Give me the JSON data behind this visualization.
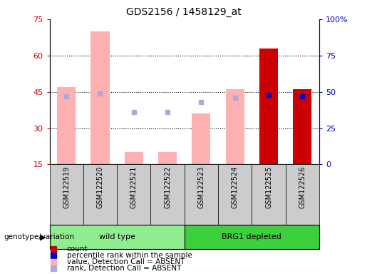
{
  "title": "GDS2156 / 1458129_at",
  "samples": [
    "GSM122519",
    "GSM122520",
    "GSM122521",
    "GSM122522",
    "GSM122523",
    "GSM122524",
    "GSM122525",
    "GSM122526"
  ],
  "groups": {
    "wild type": [
      0,
      1,
      2,
      3
    ],
    "BRG1 depleted": [
      4,
      5,
      6,
      7
    ]
  },
  "group_colors": {
    "wild type": "#90ee90",
    "BRG1 depleted": "#3ecf3e"
  },
  "ylim_left": [
    15,
    75
  ],
  "ylim_right": [
    0,
    100
  ],
  "yticks_left": [
    15,
    30,
    45,
    60,
    75
  ],
  "yticks_right": [
    0,
    25,
    50,
    75,
    100
  ],
  "ytick_labels_right": [
    "0",
    "25",
    "50",
    "75",
    "100%"
  ],
  "pink_bar_values": [
    47,
    70,
    20,
    20,
    36,
    46,
    null,
    null
  ],
  "pink_bar_color": "#ffb0b0",
  "red_bar_values": [
    null,
    null,
    null,
    null,
    null,
    null,
    63,
    46
  ],
  "red_bar_color": "#cc0000",
  "blue_square_values": [
    null,
    null,
    null,
    null,
    null,
    null,
    48,
    47
  ],
  "blue_square_color": "#0000cc",
  "light_blue_square_values": [
    47,
    49,
    36,
    36,
    43,
    46,
    null,
    null
  ],
  "light_blue_square_color": "#aaaadd",
  "bar_width": 0.55,
  "grid_color": "black",
  "grid_linestyle": ":",
  "left_axis_color": "#cc0000",
  "right_axis_color": "#0000cc",
  "background_xticklabel": "#cccccc",
  "legend_items": [
    {
      "label": "count",
      "color": "#cc0000"
    },
    {
      "label": "percentile rank within the sample",
      "color": "#0000cc"
    },
    {
      "label": "value, Detection Call = ABSENT",
      "color": "#ffb0b0"
    },
    {
      "label": "rank, Detection Call = ABSENT",
      "color": "#aaaadd"
    }
  ],
  "genotype_label": "genotype/variation"
}
